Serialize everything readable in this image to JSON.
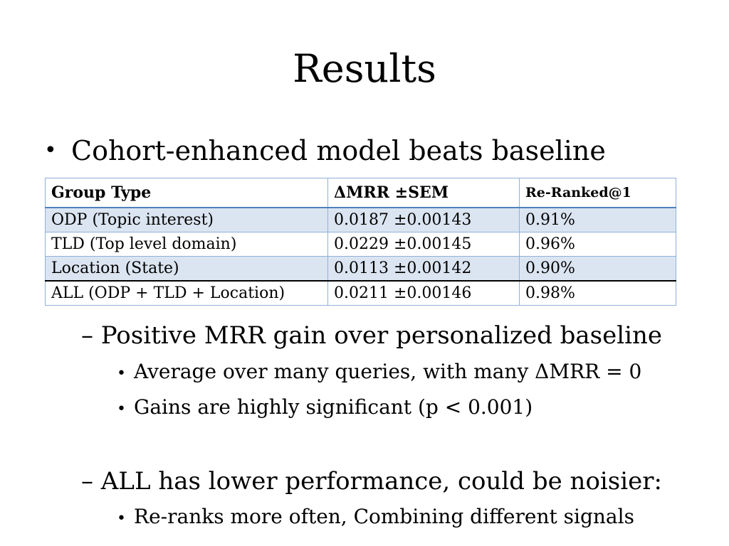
{
  "slide": {
    "title": "Results",
    "bullet": "Cohort-enhanced model beats baseline",
    "table": {
      "headers": [
        "Group Type",
        "ΔMRR ±SEM",
        "Re-Ranked@1"
      ],
      "rows": [
        [
          "ODP (Topic interest)",
          "0.0187 ±0.00143",
          "0.91%"
        ],
        [
          "TLD (Top level domain)",
          "0.0229 ±0.00145",
          "0.96%"
        ],
        [
          "Location (State)",
          "0.0113 ±0.00142",
          "0.90%"
        ],
        [
          "ALL  (ODP + TLD + Location)",
          "0.0211 ±0.00146",
          "0.98%"
        ]
      ]
    },
    "sub_points": [
      {
        "text": "– Positive MRR gain over personalized baseline",
        "items": [
          "Average over many queries, with many ΔMRR = 0",
          "Gains are highly significant (p < 0.001)"
        ]
      },
      {
        "text": "– ALL has lower performance, could be noisier:",
        "items": [
          "Re-ranks more often, Combining different signals"
        ]
      }
    ]
  }
}
